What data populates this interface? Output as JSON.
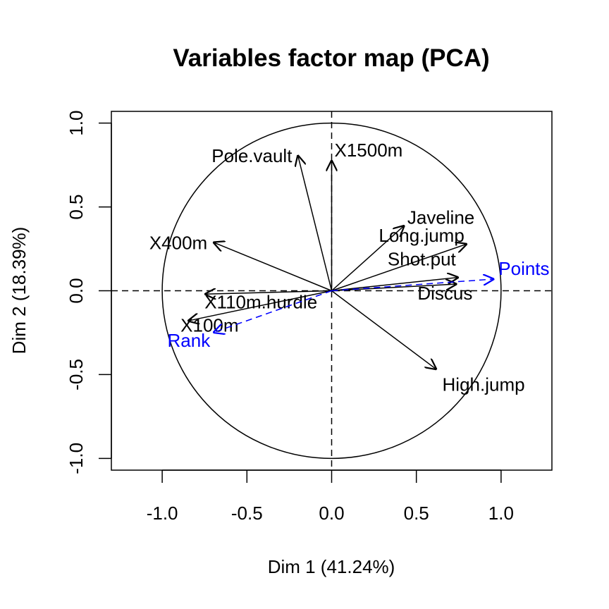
{
  "chart_data": {
    "type": "scatter",
    "title": "Variables factor map (PCA)",
    "xlabel": "Dim 1 (41.24%)",
    "ylabel": "Dim 2 (18.39%)",
    "xlim": [
      -1.3,
      1.3
    ],
    "ylim": [
      -1.07,
      1.07
    ],
    "xticks": [
      "-1.0",
      "-0.5",
      "0.0",
      "0.5",
      "1.0"
    ],
    "yticks": [
      "-1.0",
      "-0.5",
      "0.0",
      "0.5",
      "1.0"
    ],
    "xtick_values": [
      -1.0,
      -0.5,
      0.0,
      0.5,
      1.0
    ],
    "ytick_values": [
      -1.0,
      -0.5,
      0.0,
      0.5,
      1.0
    ],
    "correlation_circle": true,
    "reference_lines": "dashed at x=0 and y=0",
    "active_color": "#000000",
    "supplementary_color": "#0000ff",
    "variables": [
      {
        "name": "X100m",
        "x": -0.85,
        "y": -0.18,
        "supplementary": false
      },
      {
        "name": "Long.jump",
        "x": 0.8,
        "y": 0.28,
        "supplementary": false
      },
      {
        "name": "Shot.put",
        "x": 0.75,
        "y": 0.08,
        "supplementary": false
      },
      {
        "name": "High.jump",
        "x": 0.62,
        "y": -0.47,
        "supplementary": false
      },
      {
        "name": "X400m",
        "x": -0.7,
        "y": 0.29,
        "supplementary": false
      },
      {
        "name": "X110m.hurdle",
        "x": -0.75,
        "y": -0.02,
        "supplementary": false
      },
      {
        "name": "Discus",
        "x": 0.74,
        "y": 0.04,
        "supplementary": false
      },
      {
        "name": "Pole.vault",
        "x": -0.2,
        "y": 0.81,
        "supplementary": false
      },
      {
        "name": "Javeline",
        "x": 0.43,
        "y": 0.39,
        "supplementary": false
      },
      {
        "name": "X1500m",
        "x": 0.0,
        "y": 0.78,
        "supplementary": false
      },
      {
        "name": "Rank",
        "x": -0.7,
        "y": -0.25,
        "supplementary": true
      },
      {
        "name": "Points",
        "x": 0.96,
        "y": 0.07,
        "supplementary": true
      }
    ]
  }
}
